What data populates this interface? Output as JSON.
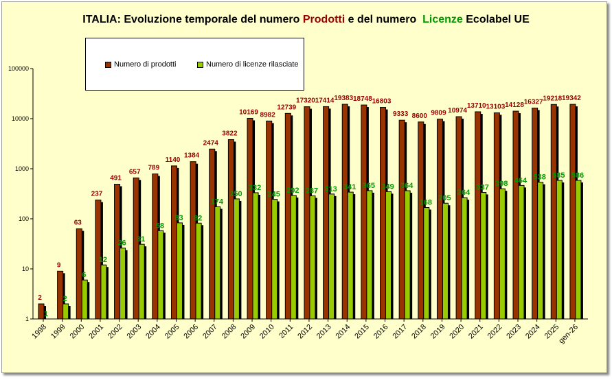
{
  "chart_data": {
    "type": "bar",
    "title": {
      "part1": "ITALIA: Evoluzione temporale del numero ",
      "part2": "Prodotti",
      "part3": " e del numero  ",
      "part4": "Licenze",
      "part5": " Ecolabel UE"
    },
    "yscale": "log",
    "ylim": [
      1,
      100000
    ],
    "yticks": [
      "1",
      "10",
      "100",
      "1000",
      "10000",
      "100000"
    ],
    "categories": [
      "1998",
      "1999",
      "2000",
      "2001",
      "2002",
      "2003",
      "2004",
      "2005",
      "2006",
      "2007",
      "2008",
      "2009",
      "2010",
      "2011",
      "2012",
      "2013",
      "2014",
      "2015",
      "2016",
      "2017",
      "2018",
      "2019",
      "2020",
      "2021",
      "2022",
      "2023",
      "2024",
      "2025",
      "gen-26"
    ],
    "series": [
      {
        "name": "Numero di prodotti",
        "color": "#993300",
        "label_color": "#990000",
        "values": [
          2,
          9,
          63,
          237,
          491,
          657,
          789,
          1140,
          1384,
          2474,
          3822,
          10169,
          8982,
          12739,
          17320,
          17414,
          19383,
          18748,
          16803,
          9333,
          8600,
          9809,
          10974,
          13710,
          13103,
          14128,
          16327,
          19218,
          19342
        ]
      },
      {
        "name": "Numero di licenze rilasciate",
        "color": "#99cc00",
        "label_color": "#009900",
        "values": [
          1,
          2,
          6,
          12,
          26,
          31,
          58,
          83,
          82,
          174,
          250,
          332,
          245,
          292,
          287,
          313,
          341,
          365,
          349,
          364,
          168,
          205,
          264,
          337,
          398,
          464,
          538,
          585,
          586
        ]
      }
    ],
    "legend": "top-left"
  }
}
